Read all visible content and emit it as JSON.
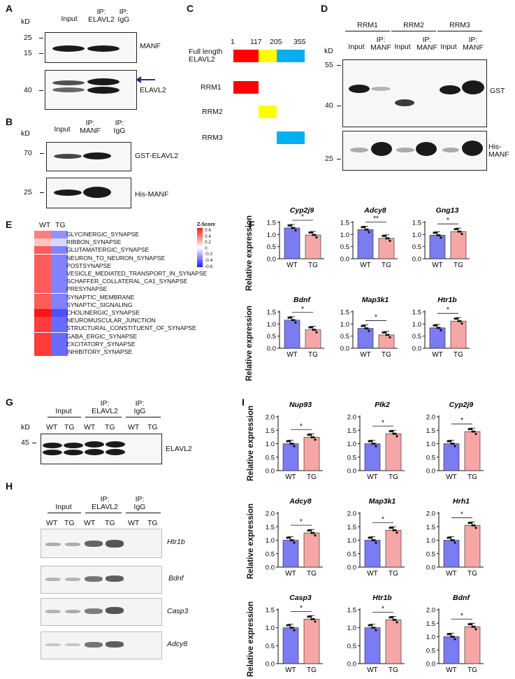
{
  "panels": {
    "A": "A",
    "B": "B",
    "C": "C",
    "D": "D",
    "E": "E",
    "F": "F",
    "G": "G",
    "H": "H",
    "I": "I"
  },
  "A": {
    "kd": "kD",
    "lanes": [
      "Input",
      "IP:\nELAVL2",
      "IP:\nIgG"
    ],
    "blot1": {
      "markers": [
        "25",
        "15"
      ],
      "label": "MANF"
    },
    "blot2": {
      "markers": [
        "40"
      ],
      "label": "ELAVL2"
    }
  },
  "B": {
    "kd": "kD",
    "lanes": [
      "Input",
      "IP:\nMANF",
      "IP:\nIgG"
    ],
    "blot1": {
      "markers": [
        "70"
      ],
      "label": "GST-ELAVL2"
    },
    "blot2": {
      "markers": [
        "25"
      ],
      "label": "His-MANF"
    }
  },
  "C": {
    "positions": [
      "1",
      "117",
      "205",
      "355"
    ],
    "full_label": "Full length\nELAVL2",
    "domains": [
      "RRM1",
      "RRM2",
      "RRM3"
    ],
    "colors": {
      "rrm1": "#ff0000",
      "rrm2": "#ffff00",
      "rrm3": "#00b0f0"
    }
  },
  "D": {
    "kd": "kD",
    "groups": [
      "RRM1",
      "RRM2",
      "RRM3"
    ],
    "lanes": [
      "Input",
      "IP:\nMANF"
    ],
    "blot1": {
      "markers": [
        "55",
        "40"
      ],
      "label": "GST"
    },
    "blot2": {
      "markers": [
        "25"
      ],
      "label": "His-\nMANF"
    }
  },
  "E": {
    "columns": [
      "WT",
      "TG"
    ],
    "legend_title": "Z-Score",
    "legend_ticks": [
      "0.6",
      "0.4",
      "0.2",
      "0",
      "-0.2",
      "-0.4",
      "-0.6"
    ],
    "rows": [
      {
        "label": "GLYCINERGIC_SYNAPSE",
        "wt": 0.33,
        "tg": -0.28
      },
      {
        "label": "RIBBON_SYNAPSE",
        "wt": 0.15,
        "tg": -0.1
      },
      {
        "label": "GLUTAMATERGIC_SYNAPSE",
        "wt": 0.42,
        "tg": -0.32
      },
      {
        "label": "NEURON_TO_NEURON_SYNAPSE",
        "wt": 0.42,
        "tg": -0.32
      },
      {
        "label": "POSTSYNAPSE",
        "wt": 0.42,
        "tg": -0.32
      },
      {
        "label": "VESICLE_MEDIATED_TRANSPORT_IN_SYNAPSE",
        "wt": 0.42,
        "tg": -0.32
      },
      {
        "label": "SCHAFFER_COLLATERAL_CA1_SYNAPSE",
        "wt": 0.42,
        "tg": -0.32
      },
      {
        "label": "PRESYNAPSE",
        "wt": 0.42,
        "tg": -0.32
      },
      {
        "label": "SYNAPTIC_MEMBRANE",
        "wt": 0.42,
        "tg": -0.32
      },
      {
        "label": "SYNAPTIC_SIGNALING",
        "wt": 0.42,
        "tg": -0.32
      },
      {
        "label": "CHOLINERGIC_SYNAPSE",
        "wt": 0.6,
        "tg": -0.45
      },
      {
        "label": "NEUROMUSCULAR_JUNCTION",
        "wt": 0.5,
        "tg": -0.38
      },
      {
        "label": "STRUCTURAL_CONSTITUENT_OF_SYNAPSE",
        "wt": 0.5,
        "tg": -0.38
      },
      {
        "label": "GABA_ERGIC_SYNAPSE",
        "wt": 0.5,
        "tg": -0.38
      },
      {
        "label": "EXCITATORY_SYNAPSE",
        "wt": 0.5,
        "tg": -0.38
      },
      {
        "label": "INHIBITORY_SYNAPSE",
        "wt": 0.5,
        "tg": -0.38
      }
    ]
  },
  "G": {
    "kd": "kD",
    "groups": [
      "Input",
      "IP:\nELAVL2",
      "IP:\nIgG"
    ],
    "lanes": [
      "WT",
      "TG",
      "WT",
      "TG",
      "WT",
      "TG"
    ],
    "markers": [
      "45"
    ],
    "label": "ELAVL2"
  },
  "H": {
    "groups": [
      "Input",
      "IP:\nELAVL2",
      "IP:\nIgG"
    ],
    "lanes": [
      "WT",
      "TG",
      "WT",
      "TG",
      "WT",
      "TG"
    ],
    "genes": [
      "Htr1b",
      "Bdnf",
      "Casp3",
      "Adcy8"
    ]
  },
  "chart_data": [
    {
      "panel": "F",
      "type": "bar",
      "title": "Cyp2j9",
      "categories": [
        "WT",
        "TG"
      ],
      "values": [
        1.27,
        0.98
      ],
      "ylabel": "Relative expression",
      "yticks": [
        "0.0",
        "0.5",
        "1.0",
        "1.5"
      ],
      "ylim": [
        0,
        1.5
      ],
      "significance": "*"
    },
    {
      "panel": "F",
      "type": "bar",
      "title": "Adcy8",
      "categories": [
        "WT",
        "TG"
      ],
      "values": [
        1.2,
        0.84
      ],
      "ylabel": "",
      "yticks": [
        "0.0",
        "0.5",
        "1.0",
        "1.5"
      ],
      "ylim": [
        0,
        1.5
      ],
      "significance": "**"
    },
    {
      "panel": "F",
      "type": "bar",
      "title": "Gng13",
      "categories": [
        "WT",
        "TG"
      ],
      "values": [
        0.97,
        1.12
      ],
      "ylabel": "",
      "yticks": [
        "0.0",
        "0.5",
        "1.0",
        "1.5"
      ],
      "ylim": [
        0,
        1.5
      ],
      "significance": "*"
    },
    {
      "panel": "F",
      "type": "bar",
      "title": "Bdnf",
      "categories": [
        "WT",
        "TG"
      ],
      "values": [
        1.16,
        0.76
      ],
      "ylabel": "Relative expression",
      "yticks": [
        "0.0",
        "0.5",
        "1.0",
        "1.5"
      ],
      "ylim": [
        0,
        1.5
      ],
      "significance": "*"
    },
    {
      "panel": "F",
      "type": "bar",
      "title": "Map3k1",
      "categories": [
        "WT",
        "TG"
      ],
      "values": [
        0.82,
        0.55
      ],
      "ylabel": "",
      "yticks": [
        "0.0",
        "0.5",
        "1.0",
        "1.5"
      ],
      "ylim": [
        0,
        1.5
      ],
      "significance": "*"
    },
    {
      "panel": "F",
      "type": "bar",
      "title": "Htr1b",
      "categories": [
        "WT",
        "TG"
      ],
      "values": [
        0.84,
        1.12
      ],
      "ylabel": "",
      "yticks": [
        "0.0",
        "0.5",
        "1.0",
        "1.5"
      ],
      "ylim": [
        0,
        1.5
      ],
      "significance": "*"
    },
    {
      "panel": "I",
      "type": "bar",
      "title": "Nup93",
      "categories": [
        "WT",
        "TG"
      ],
      "values": [
        1.0,
        1.24
      ],
      "ylabel": "Relative expression",
      "yticks": [
        "0.0",
        "0.5",
        "1.0",
        "1.5",
        "2.0"
      ],
      "ylim": [
        0,
        2.0
      ],
      "significance": "*"
    },
    {
      "panel": "I",
      "type": "bar",
      "title": "Plk2",
      "categories": [
        "WT",
        "TG"
      ],
      "values": [
        1.0,
        1.37
      ],
      "ylabel": "",
      "yticks": [
        "0.0",
        "0.5",
        "1.0",
        "1.5",
        "2.0"
      ],
      "ylim": [
        0,
        2.0
      ],
      "significance": "*"
    },
    {
      "panel": "I",
      "type": "bar",
      "title": "Cyp2j9",
      "categories": [
        "WT",
        "TG"
      ],
      "values": [
        1.0,
        1.45
      ],
      "ylabel": "",
      "yticks": [
        "0.0",
        "0.5",
        "1.0",
        "1.5",
        "2.0"
      ],
      "ylim": [
        0,
        2.0
      ],
      "significance": "*"
    },
    {
      "panel": "I",
      "type": "bar",
      "title": "Adcy8",
      "categories": [
        "WT",
        "TG"
      ],
      "values": [
        1.0,
        1.27
      ],
      "ylabel": "Relative expression",
      "yticks": [
        "0.0",
        "0.5",
        "1.0",
        "1.5",
        "2.0"
      ],
      "ylim": [
        0,
        2.0
      ],
      "significance": "*"
    },
    {
      "panel": "I",
      "type": "bar",
      "title": "Map3k1",
      "categories": [
        "WT",
        "TG"
      ],
      "values": [
        1.0,
        1.37
      ],
      "ylabel": "",
      "yticks": [
        "0.0",
        "0.5",
        "1.0",
        "1.5",
        "2.0"
      ],
      "ylim": [
        0,
        2.0
      ],
      "significance": "*"
    },
    {
      "panel": "I",
      "type": "bar",
      "title": "Hrh1",
      "categories": [
        "WT",
        "TG"
      ],
      "values": [
        1.0,
        1.55
      ],
      "ylabel": "",
      "yticks": [
        "0.0",
        "0.5",
        "1.0",
        "1.5",
        "2.0"
      ],
      "ylim": [
        0,
        2.0
      ],
      "significance": "*"
    },
    {
      "panel": "I",
      "type": "bar",
      "title": "Casp3",
      "categories": [
        "WT",
        "TG"
      ],
      "values": [
        1.0,
        1.24
      ],
      "ylabel": "Relative expression",
      "yticks": [
        "0.0",
        "0.5",
        "1.0",
        "1.5"
      ],
      "ylim": [
        0,
        1.5
      ],
      "significance": "*"
    },
    {
      "panel": "I",
      "type": "bar",
      "title": "Htr1b",
      "categories": [
        "WT",
        "TG"
      ],
      "values": [
        1.0,
        1.22
      ],
      "ylabel": "",
      "yticks": [
        "0.0",
        "0.5",
        "1.0",
        "1.5"
      ],
      "ylim": [
        0,
        1.5
      ],
      "significance": "*"
    },
    {
      "panel": "I",
      "type": "bar",
      "title": "Bdnf",
      "categories": [
        "WT",
        "TG"
      ],
      "values": [
        1.0,
        1.37
      ],
      "ylabel": "",
      "yticks": [
        "0.0",
        "0.5",
        "1.0",
        "1.5",
        "2.0"
      ],
      "ylim": [
        0,
        2.0
      ],
      "significance": "*"
    }
  ],
  "colors": {
    "wt": "#7b7bf2",
    "tg": "#f7a6a6"
  }
}
